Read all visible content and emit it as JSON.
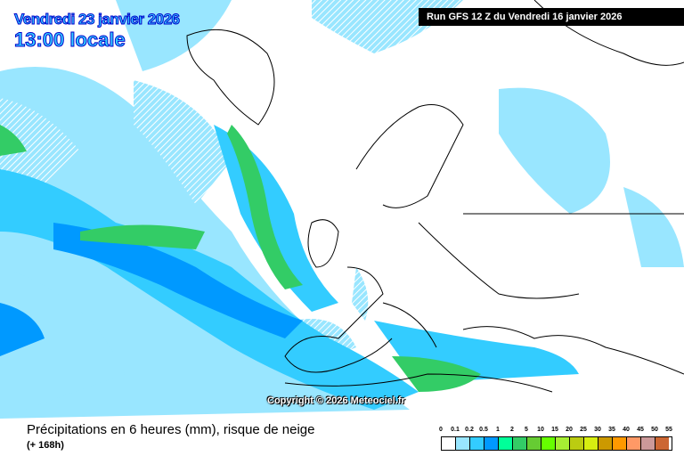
{
  "header": {
    "date": "Vendredi 23 janvier 2026",
    "hour": "13:00 locale",
    "run": "Run GFS 12 Z du Vendredi 16 janvier 2026"
  },
  "map": {
    "copyright": "Copyright © 2026 Meteociel.fr",
    "colors": {
      "light": "#99e6ff",
      "mid": "#33ccff",
      "blue": "#0099ff",
      "green": "#00ff99",
      "dgreen": "#33cc66",
      "lime": "#66cc33"
    }
  },
  "footer": {
    "title": "Précipitations en 6 heures (mm), risque de neige",
    "subtitle": "(+ 168h)"
  },
  "legend": {
    "labels": [
      "0",
      "0.1",
      "0.2",
      "0.5",
      "1",
      "2",
      "5",
      "10",
      "15",
      "20",
      "25",
      "30",
      "35",
      "40",
      "45",
      "50",
      "55"
    ],
    "colors": [
      "#ffffff",
      "#99e6ff",
      "#33ccff",
      "#0099ff",
      "#00ff99",
      "#33cc66",
      "#66cc33",
      "#66ff00",
      "#a6ee33",
      "#bbcc11",
      "#d7ee11",
      "#cc9900",
      "#ff9900",
      "#ff9966",
      "#cc9999",
      "#cc6633",
      "#cc3333"
    ]
  }
}
